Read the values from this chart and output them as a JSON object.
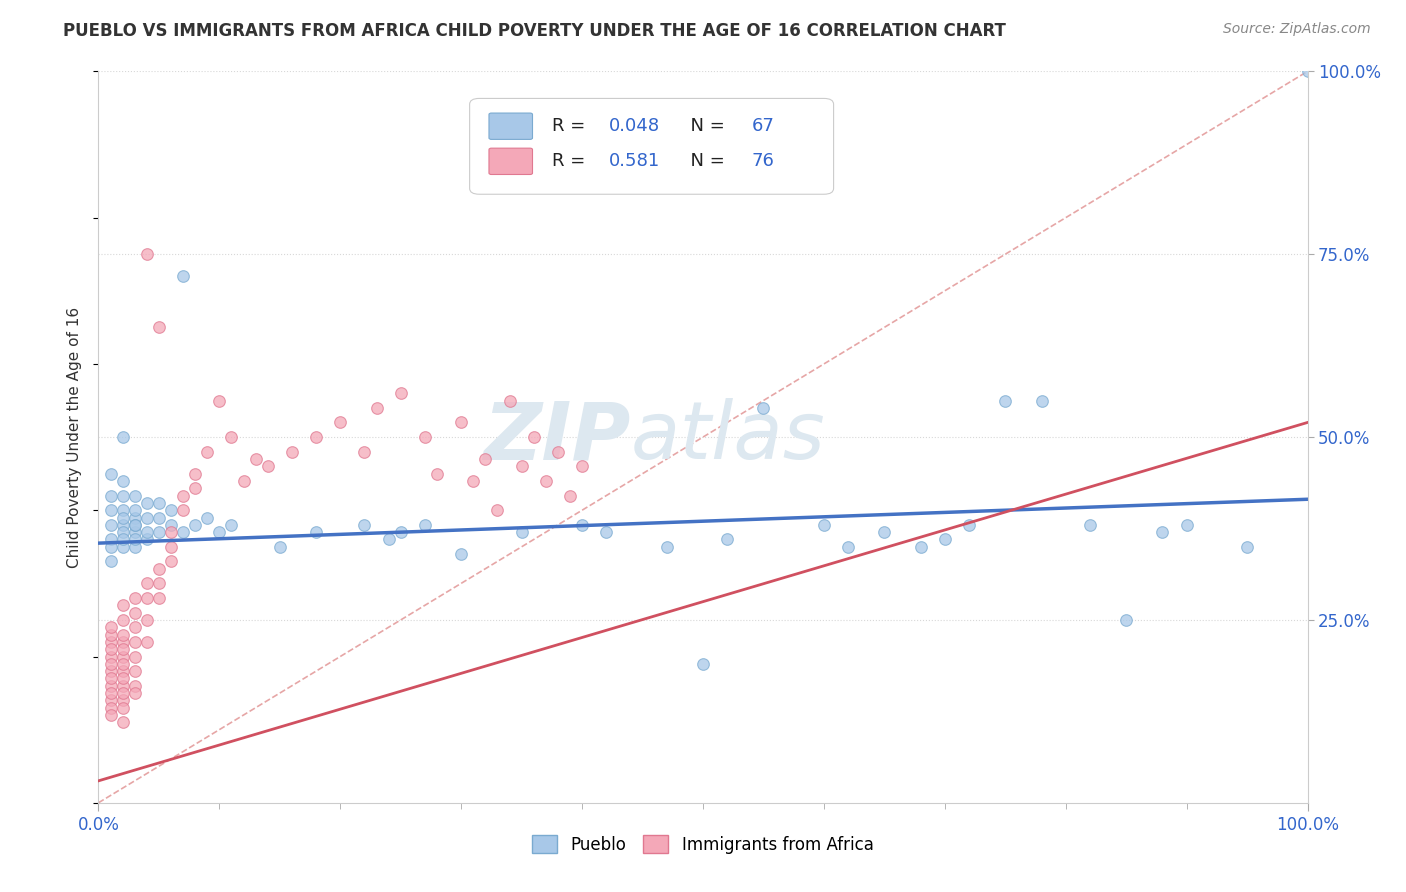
{
  "title": "PUEBLO VS IMMIGRANTS FROM AFRICA CHILD POVERTY UNDER THE AGE OF 16 CORRELATION CHART",
  "source": "Source: ZipAtlas.com",
  "ylabel": "Child Poverty Under the Age of 16",
  "xlim": [
    0.0,
    1.0
  ],
  "ylim": [
    0.0,
    1.0
  ],
  "pueblo_R": "0.048",
  "pueblo_N": "67",
  "africa_R": "0.581",
  "africa_N": "76",
  "pueblo_color": "#a8c8e8",
  "africa_color": "#f4a8b8",
  "pueblo_edge_color": "#7aaad0",
  "africa_edge_color": "#e07890",
  "pueblo_line_color": "#4472c4",
  "africa_line_color": "#d05060",
  "diag_line_color": "#e09090",
  "legend_text_color": "#3366cc",
  "watermark_color": "#dde8f0",
  "xtick_color": "#3366cc",
  "ytick_color": "#3366cc",
  "grid_color": "#d8d8d8",
  "title_color": "#333333",
  "source_color": "#888888",
  "ylabel_color": "#333333",
  "pueblo_trend_start_y": 0.355,
  "pueblo_trend_end_y": 0.415,
  "africa_trend_start_y": 0.03,
  "africa_trend_end_y": 0.52,
  "pueblo_x": [
    0.01,
    0.01,
    0.01,
    0.01,
    0.01,
    0.01,
    0.01,
    0.02,
    0.02,
    0.02,
    0.02,
    0.02,
    0.02,
    0.02,
    0.02,
    0.02,
    0.03,
    0.03,
    0.03,
    0.03,
    0.03,
    0.03,
    0.03,
    0.03,
    0.04,
    0.04,
    0.04,
    0.04,
    0.05,
    0.05,
    0.05,
    0.06,
    0.06,
    0.07,
    0.07,
    0.08,
    0.09,
    0.1,
    0.11,
    0.15,
    0.18,
    0.22,
    0.24,
    0.25,
    0.27,
    0.3,
    0.35,
    0.4,
    0.42,
    0.47,
    0.5,
    0.52,
    0.55,
    0.6,
    0.62,
    0.65,
    0.68,
    0.7,
    0.72,
    0.75,
    0.78,
    0.82,
    0.85,
    0.88,
    0.9,
    0.95,
    1.0
  ],
  "pueblo_y": [
    0.4,
    0.42,
    0.38,
    0.36,
    0.35,
    0.33,
    0.45,
    0.38,
    0.4,
    0.42,
    0.44,
    0.35,
    0.37,
    0.5,
    0.36,
    0.39,
    0.35,
    0.37,
    0.39,
    0.38,
    0.4,
    0.42,
    0.36,
    0.38,
    0.36,
    0.37,
    0.39,
    0.41,
    0.37,
    0.39,
    0.41,
    0.38,
    0.4,
    0.37,
    0.72,
    0.38,
    0.39,
    0.37,
    0.38,
    0.35,
    0.37,
    0.38,
    0.36,
    0.37,
    0.38,
    0.34,
    0.37,
    0.38,
    0.37,
    0.35,
    0.19,
    0.36,
    0.54,
    0.38,
    0.35,
    0.37,
    0.35,
    0.36,
    0.38,
    0.55,
    0.55,
    0.38,
    0.25,
    0.37,
    0.38,
    0.35,
    1.0
  ],
  "africa_x": [
    0.01,
    0.01,
    0.01,
    0.01,
    0.01,
    0.01,
    0.01,
    0.01,
    0.01,
    0.01,
    0.01,
    0.01,
    0.01,
    0.02,
    0.02,
    0.02,
    0.02,
    0.02,
    0.02,
    0.02,
    0.02,
    0.02,
    0.02,
    0.02,
    0.02,
    0.02,
    0.02,
    0.03,
    0.03,
    0.03,
    0.03,
    0.03,
    0.03,
    0.03,
    0.03,
    0.04,
    0.04,
    0.04,
    0.04,
    0.04,
    0.05,
    0.05,
    0.05,
    0.05,
    0.06,
    0.06,
    0.06,
    0.07,
    0.07,
    0.08,
    0.08,
    0.09,
    0.1,
    0.11,
    0.12,
    0.13,
    0.14,
    0.16,
    0.18,
    0.2,
    0.22,
    0.23,
    0.25,
    0.27,
    0.28,
    0.3,
    0.31,
    0.32,
    0.33,
    0.34,
    0.35,
    0.36,
    0.37,
    0.38,
    0.39,
    0.4
  ],
  "africa_y": [
    0.2,
    0.22,
    0.18,
    0.16,
    0.14,
    0.17,
    0.19,
    0.21,
    0.13,
    0.15,
    0.23,
    0.12,
    0.24,
    0.18,
    0.2,
    0.22,
    0.16,
    0.14,
    0.17,
    0.19,
    0.21,
    0.15,
    0.23,
    0.13,
    0.25,
    0.27,
    0.11,
    0.2,
    0.22,
    0.24,
    0.18,
    0.16,
    0.26,
    0.28,
    0.15,
    0.25,
    0.28,
    0.3,
    0.22,
    0.75,
    0.3,
    0.32,
    0.28,
    0.65,
    0.35,
    0.37,
    0.33,
    0.4,
    0.42,
    0.45,
    0.43,
    0.48,
    0.55,
    0.5,
    0.44,
    0.47,
    0.46,
    0.48,
    0.5,
    0.52,
    0.48,
    0.54,
    0.56,
    0.5,
    0.45,
    0.52,
    0.44,
    0.47,
    0.4,
    0.55,
    0.46,
    0.5,
    0.44,
    0.48,
    0.42,
    0.46
  ]
}
